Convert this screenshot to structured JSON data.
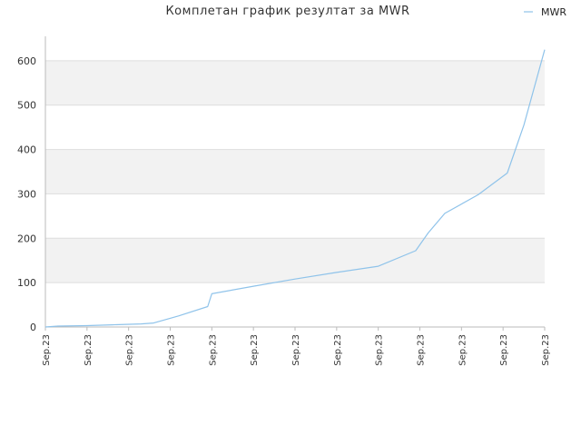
{
  "chart_data": {
    "type": "line",
    "title": "Комплетан график резултат за MWR",
    "xlabel": "",
    "ylabel": "",
    "legend_position": "top-right",
    "grid": true,
    "ylim": [
      0,
      655
    ],
    "yticks": [
      0,
      100,
      200,
      300,
      400,
      500,
      600
    ],
    "xtick_labels": [
      "Sep.23",
      "Sep.23",
      "Sep.23",
      "Sep.23",
      "Sep.23",
      "Sep.23",
      "Sep.23",
      "Sep.23",
      "Sep.23",
      "Sep.23",
      "Sep.23",
      "Sep.23",
      "Sep.23"
    ],
    "colors": {
      "series": "#8fc3ea",
      "band": "#f2f2f2",
      "band_top": "#ebebeb",
      "grid": "#dddddd",
      "axis": "#bbbbbb"
    },
    "series": [
      {
        "name": "MWR",
        "x": [
          0,
          0.3,
          1.0,
          1.6,
          2.3,
          2.6,
          3.2,
          3.9,
          4.0,
          5.0,
          6.0,
          7.0,
          8.0,
          8.9,
          9.2,
          9.6,
          10.4,
          11.1,
          11.5,
          12.0
        ],
        "y": [
          0,
          2,
          3,
          5,
          7,
          9,
          25,
          46,
          75,
          92,
          108,
          123,
          137,
          172,
          212,
          256,
          298,
          347,
          455,
          625
        ]
      }
    ]
  }
}
